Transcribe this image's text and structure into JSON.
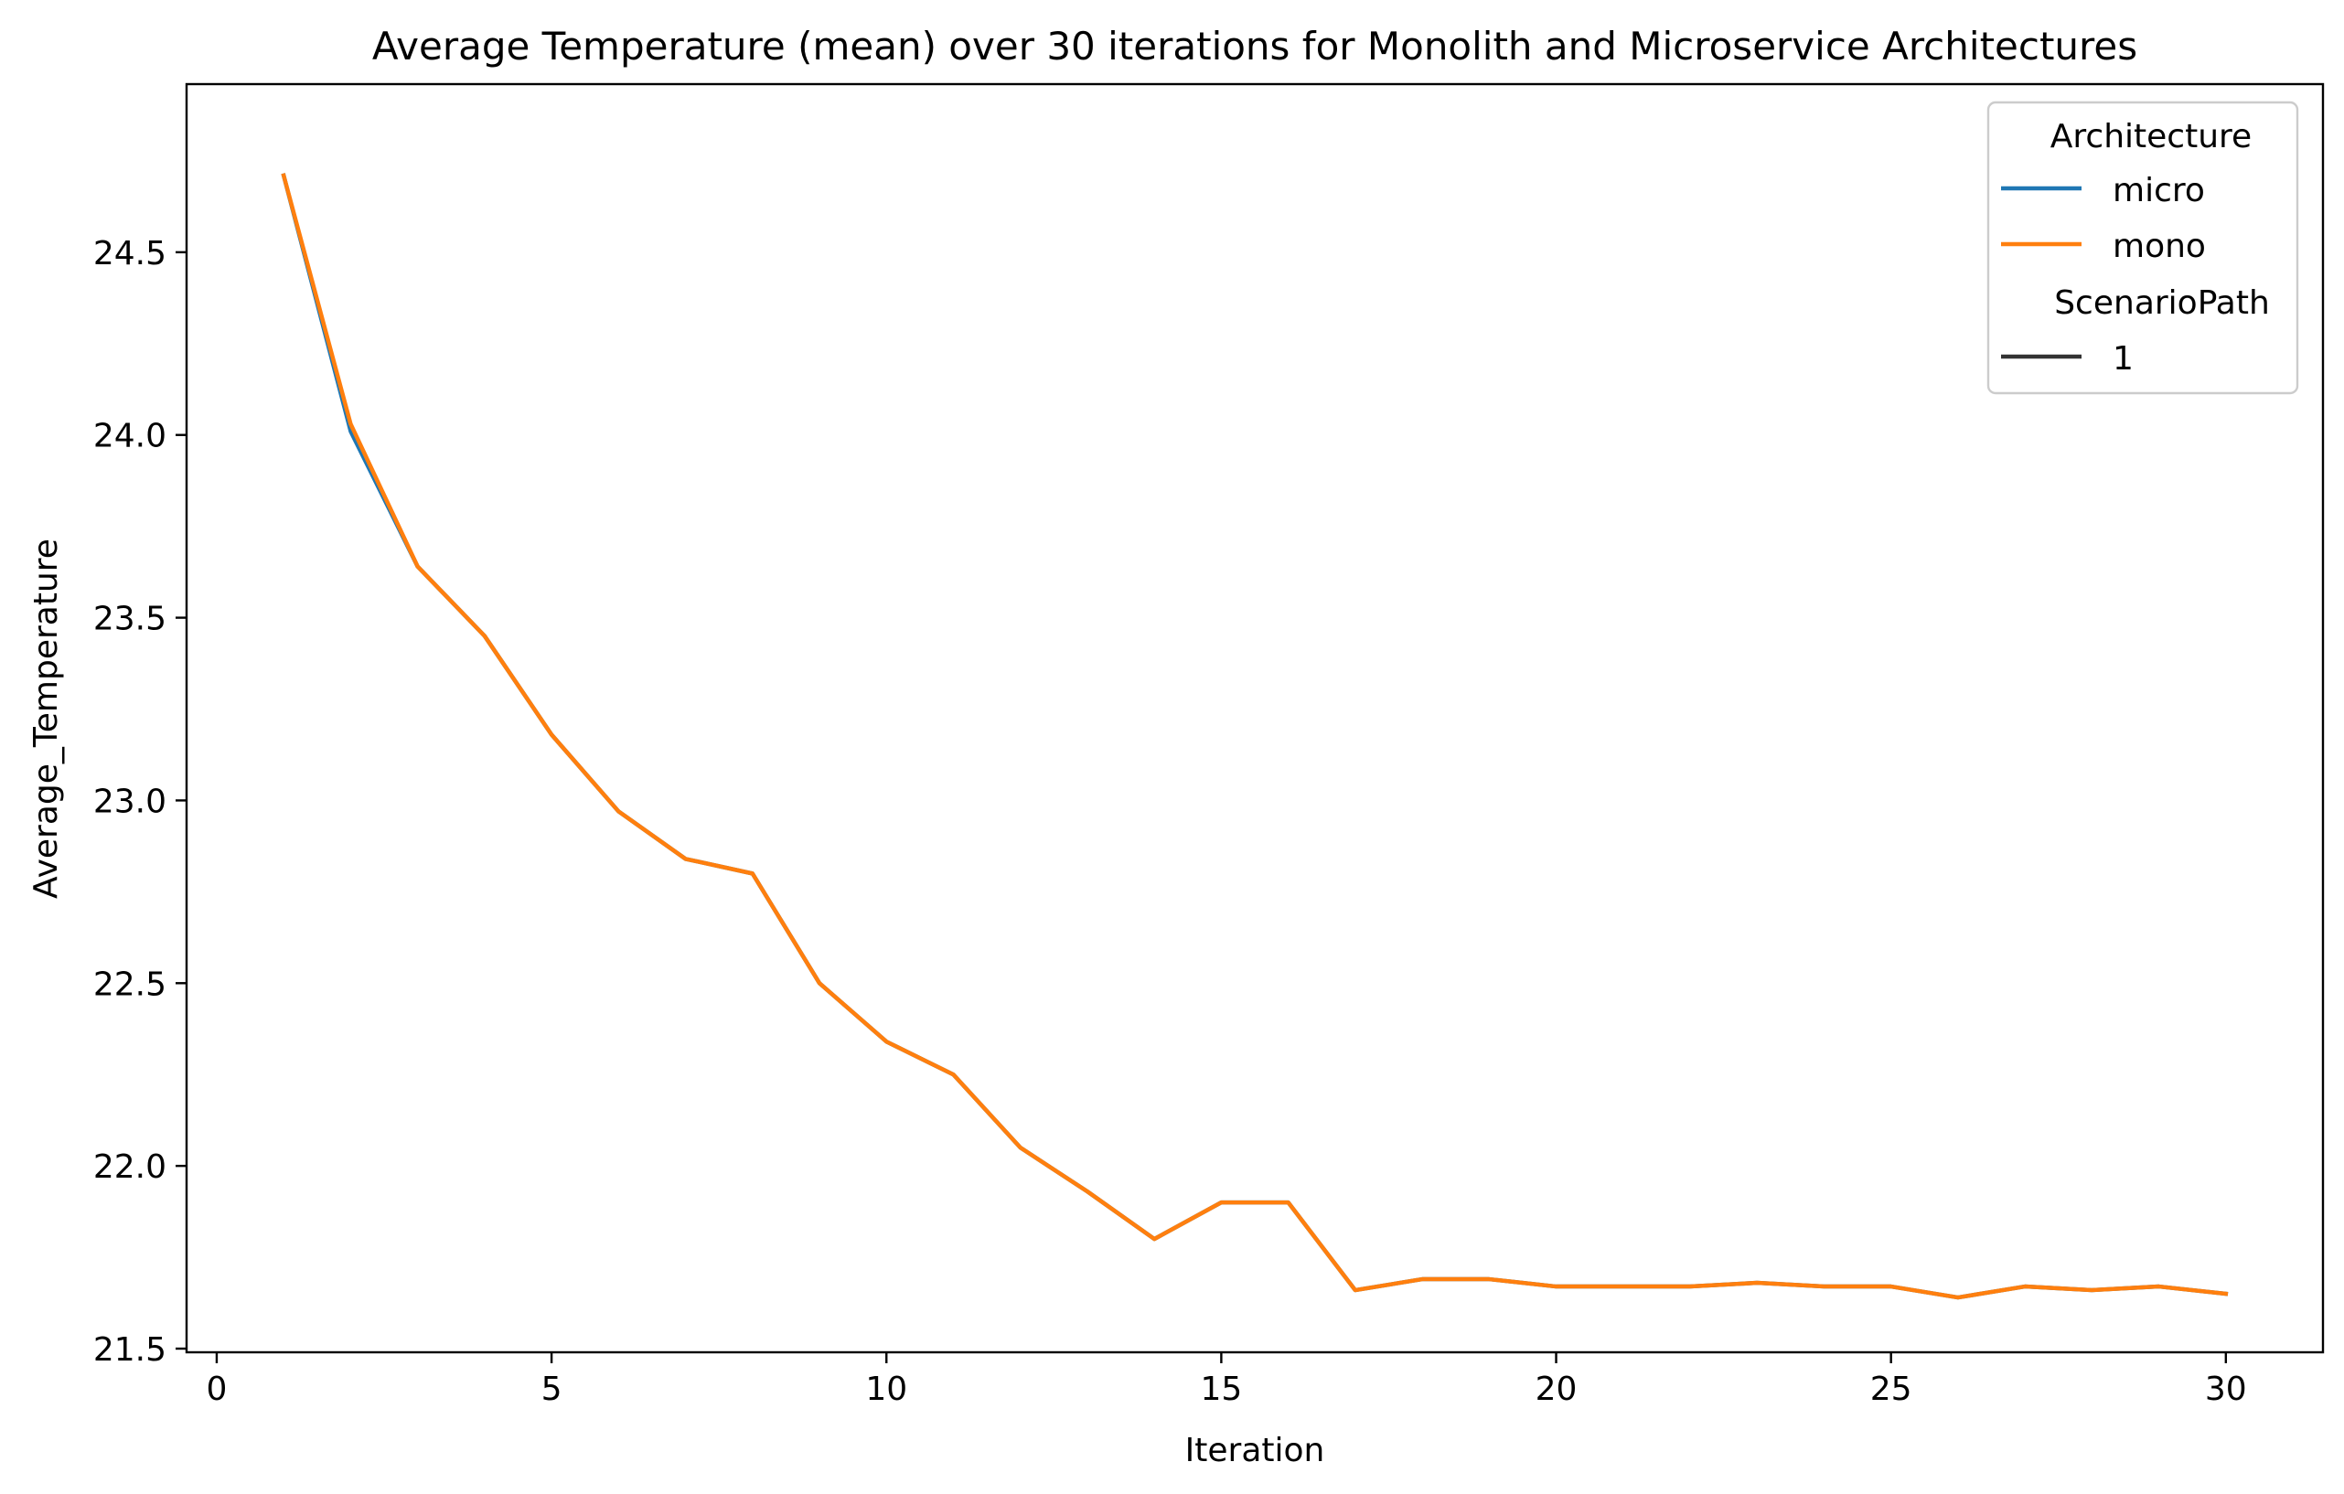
{
  "chart_data": {
    "type": "line",
    "title": "Average Temperature (mean) over 30 iterations for Monolith and Microservice Architectures",
    "xlabel": "Iteration",
    "ylabel": "Average_Temperature",
    "xlim": [
      -0.45,
      31.45
    ],
    "ylim": [
      21.49,
      24.96
    ],
    "xticks": [
      0,
      5,
      10,
      15,
      20,
      25,
      30
    ],
    "xtick_labels": [
      "0",
      "5",
      "10",
      "15",
      "20",
      "25",
      "30"
    ],
    "yticks": [
      21.5,
      22.0,
      22.5,
      23.0,
      23.5,
      24.0,
      24.5
    ],
    "ytick_labels": [
      "21.5",
      "22.0",
      "22.5",
      "23.0",
      "23.5",
      "24.0",
      "24.5"
    ],
    "grid": false,
    "legend": {
      "placement": "top-right",
      "hue_title": "Architecture",
      "style_title": "ScenarioPath",
      "style_entries": [
        "1"
      ]
    },
    "x": [
      1,
      2,
      3,
      4,
      5,
      6,
      7,
      8,
      9,
      10,
      11,
      12,
      13,
      14,
      15,
      16,
      17,
      18,
      19,
      20,
      21,
      22,
      23,
      24,
      25,
      26,
      27,
      28,
      29,
      30
    ],
    "series": [
      {
        "name": "micro",
        "color": "#1f77b4",
        "values": [
          24.71,
          24.01,
          23.64,
          23.45,
          23.18,
          22.97,
          22.84,
          22.8,
          22.5,
          22.34,
          22.25,
          22.05,
          21.93,
          21.8,
          21.9,
          21.9,
          21.66,
          21.69,
          21.69,
          21.67,
          21.67,
          21.67,
          21.68,
          21.67,
          21.67,
          21.64,
          21.67,
          21.66,
          21.67,
          21.65
        ]
      },
      {
        "name": "mono",
        "color": "#ff7f0e",
        "values": [
          24.71,
          24.03,
          23.64,
          23.45,
          23.18,
          22.97,
          22.84,
          22.8,
          22.5,
          22.34,
          22.25,
          22.05,
          21.93,
          21.8,
          21.9,
          21.9,
          21.66,
          21.69,
          21.69,
          21.67,
          21.67,
          21.67,
          21.68,
          21.67,
          21.67,
          21.64,
          21.67,
          21.66,
          21.67,
          21.65
        ]
      }
    ]
  }
}
